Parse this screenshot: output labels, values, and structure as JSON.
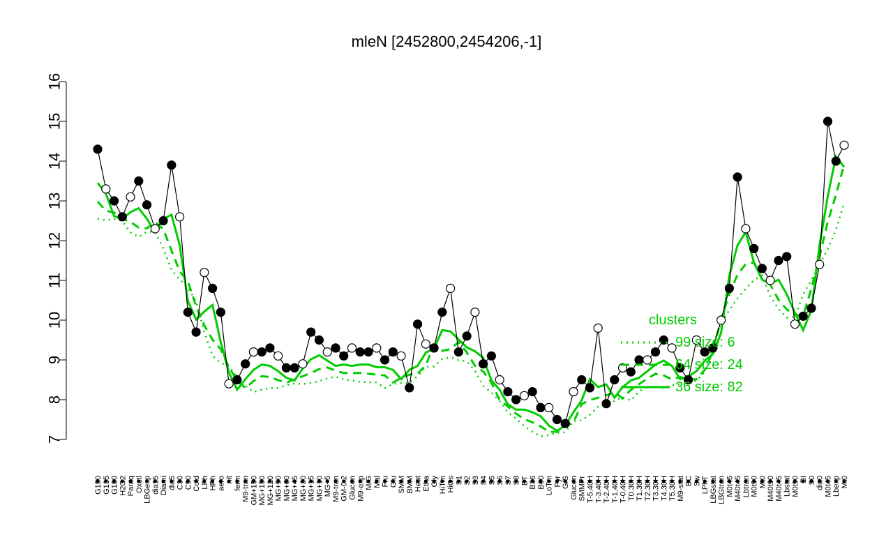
{
  "chart_data": {
    "type": "line",
    "title": "mleN [2452800,2454206,-1]",
    "xlabel": "",
    "ylabel": "",
    "ylim": [
      7,
      16
    ],
    "yticks": [
      7,
      8,
      9,
      10,
      11,
      12,
      13,
      14,
      15,
      16
    ],
    "grid": false,
    "legend": {
      "placement": "center-right",
      "title": "clusters",
      "entries": [
        {
          "label": "99 size: 6",
          "style": "dotted"
        },
        {
          "label": "64 size: 24",
          "style": "dashed"
        },
        {
          "label": "36 size: 82",
          "style": "solid"
        }
      ]
    },
    "colors": {
      "cluster_lines": "#00cc00",
      "points": "#000000",
      "axis": "#000000"
    },
    "x_labels_top": [
      "G150",
      "G135",
      "G180",
      "H2O2",
      "Paraq",
      "Oxctl",
      "LBGexp",
      "dia15",
      "Diami",
      "dia5",
      "C30",
      "C90",
      "Cold",
      "LPh",
      "HPh",
      "aero",
      "nit",
      "ferm",
      "M9-tran",
      "GM+150",
      "MG+150",
      "MG+120",
      "MG+90",
      "MG+60",
      "MG+45",
      "MG+30",
      "MG+15",
      "MG+10",
      "MG+5",
      "M9-tran",
      "GM-0.2",
      "Glucon",
      "M9-exp",
      "M/G",
      "Mal",
      "Fru",
      "Glu",
      "SMM",
      "BMM",
      "Heat",
      "Etha",
      "Gly",
      "HiTm",
      "HiOs",
      "S1",
      "S2",
      "S3",
      "S4",
      "S5",
      "S6",
      "S7",
      "S8",
      "BT",
      "B36",
      "B60",
      "LoTm",
      "Pyr",
      "G/S",
      "Glucon",
      "SMMPr",
      "T-5.40H",
      "T-3.40H",
      "T-2.40H",
      "T-1.40H",
      "T-0.40H",
      "T0.30H",
      "T1.30H",
      "T2.30H",
      "T3.30H",
      "T4.30H",
      "T5.30H",
      "M9-stat",
      "BC",
      "Sw",
      "LPhT",
      "LBGstat",
      "LBGtran",
      "M0t45",
      "M40t45",
      "Lbtran",
      "M0t90",
      "Mt0",
      "M40t90",
      "M40t45",
      "Lbstat",
      "M0t90",
      "BI",
      "S0",
      "dia0",
      "M0t45",
      "Lbexp",
      "Mt0"
    ],
    "series": [
      {
        "name": "",
        "x": [
          1,
          2,
          3,
          4,
          5,
          6,
          7,
          8,
          9,
          10,
          11,
          12,
          13,
          14,
          15,
          16,
          17,
          18,
          19,
          20,
          21,
          22,
          23,
          24,
          25,
          26,
          27,
          28,
          29,
          30,
          31,
          32,
          33,
          34,
          35,
          36,
          37,
          38,
          39,
          40,
          41,
          42,
          43,
          44,
          45,
          46,
          47,
          48,
          49,
          50,
          51,
          52,
          53,
          54,
          55,
          56,
          57,
          58,
          59,
          60,
          61,
          62,
          63,
          64,
          65,
          66,
          67,
          68,
          69,
          70,
          71,
          72,
          73,
          74,
          75,
          76,
          77,
          78,
          79,
          80,
          81,
          82,
          83,
          84,
          85,
          86,
          87,
          88,
          89,
          90,
          91,
          92
        ],
        "values": [
          14.3,
          13.3,
          13.0,
          12.6,
          13.1,
          13.5,
          12.9,
          12.3,
          12.5,
          13.9,
          12.6,
          10.2,
          9.7,
          11.2,
          10.8,
          10.2,
          8.4,
          8.5,
          8.9,
          9.2,
          9.2,
          9.3,
          9.1,
          8.8,
          8.8,
          8.9,
          9.7,
          9.5,
          9.2,
          9.3,
          9.1,
          9.3,
          9.2,
          9.2,
          9.3,
          9.0,
          9.2,
          9.1,
          8.3,
          9.9,
          9.4,
          9.3,
          10.2,
          10.8,
          9.2,
          9.6,
          10.2,
          8.9,
          9.1,
          8.5,
          8.2,
          8.0,
          8.1,
          8.2,
          7.8,
          7.8,
          7.5,
          7.4,
          8.2,
          8.5,
          8.3,
          9.8,
          7.9,
          8.5,
          8.8,
          8.7,
          9.0,
          9.0,
          9.2,
          9.5,
          9.3,
          8.8,
          8.5,
          9.5,
          9.2,
          9.3,
          10.0,
          10.8,
          13.6,
          12.3,
          11.8,
          11.3,
          11.0,
          11.5,
          11.6,
          9.9,
          10.1,
          10.3,
          11.4,
          15.0,
          14.0,
          14.4
        ]
      }
    ]
  }
}
